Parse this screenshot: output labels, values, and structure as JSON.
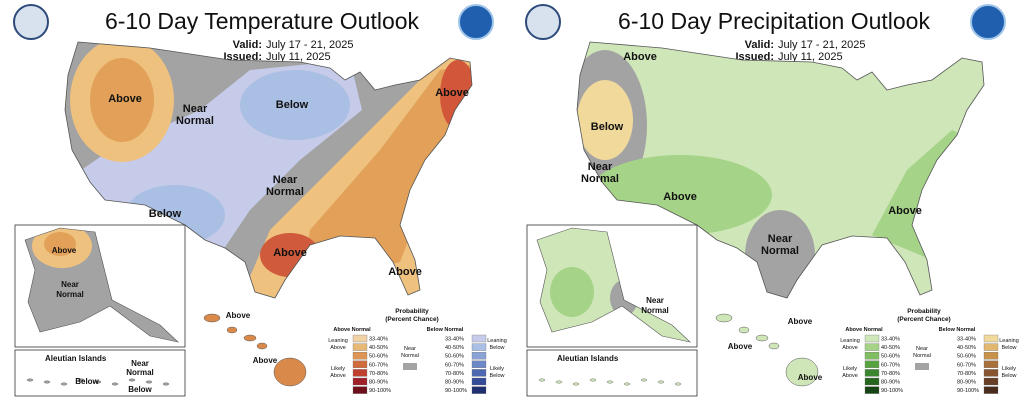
{
  "panels": [
    {
      "title": "6-10 Day Temperature Outlook",
      "valid_label": "Valid:",
      "valid": "July 17 - 21, 2025",
      "issued_label": "Issued:",
      "issued": "July 11, 2025",
      "map_labels": [
        [
          "Above"
        ],
        [
          "Near",
          "Normal"
        ],
        [
          "Below"
        ],
        [
          "Near",
          "Normal"
        ],
        [
          "Below"
        ],
        [
          "Above"
        ],
        [
          "Above"
        ],
        [
          "Above"
        ]
      ],
      "alaska_labels": [
        [
          "Above"
        ],
        [
          "Near",
          "Normal"
        ]
      ],
      "aleutian": {
        "title": "Aleutian Islands",
        "labels": [
          [
            "Near",
            "Normal"
          ],
          [
            "Below"
          ],
          [
            "Below"
          ]
        ]
      },
      "hawaii_labels": [
        "Above",
        "Above"
      ],
      "legend": {
        "title": [
          "Probability",
          "(Percent Chance)"
        ],
        "above_header": "Above Normal",
        "below_header": "Below Normal",
        "near": [
          "Near",
          "Normal"
        ],
        "leaning_above": [
          "Leaning",
          "Above"
        ],
        "likely_above": [
          "Likely",
          "Above"
        ],
        "leaning_below": [
          "Leaning",
          "Below"
        ],
        "likely_below": [
          "Likely",
          "Below"
        ],
        "above_ranges": [
          "33-40%",
          "40-50%",
          "50-60%",
          "60-70%",
          "70-80%",
          "80-90%",
          "90-100%"
        ],
        "below_ranges": [
          "33-40%",
          "40-50%",
          "50-60%",
          "60-70%",
          "70-80%",
          "80-90%",
          "90-100%"
        ]
      }
    },
    {
      "title": "6-10 Day Precipitation Outlook",
      "valid_label": "Valid:",
      "valid": "July 17 - 21, 2025",
      "issued_label": "Issued:",
      "issued": "July 11, 2025",
      "map_labels": [
        [
          "Above"
        ],
        [
          "Below"
        ],
        [
          "Near",
          "Normal"
        ],
        [
          "Above"
        ],
        [
          "Near",
          "Normal"
        ],
        [
          "Above"
        ]
      ],
      "alaska_labels": [
        [
          "Near",
          "Normal"
        ]
      ],
      "aleutian": {
        "title": "Aleutian Islands",
        "labels": []
      },
      "hawaii_labels": [
        "Above",
        "Above",
        "Above"
      ],
      "legend": {
        "title": [
          "Probability",
          "(Percent Chance)"
        ],
        "above_header": "Above Normal",
        "below_header": "Below Normal",
        "near": [
          "Near",
          "Normal"
        ],
        "leaning_above": [
          "Leaning",
          "Above"
        ],
        "likely_above": [
          "Likely",
          "Above"
        ],
        "leaning_below": [
          "Leaning",
          "Below"
        ],
        "likely_below": [
          "Likely",
          "Below"
        ],
        "above_ranges": [
          "33-40%",
          "40-50%",
          "50-60%",
          "60-70%",
          "70-80%",
          "80-90%",
          "90-100%"
        ],
        "below_ranges": [
          "33-40%",
          "40-50%",
          "50-60%",
          "60-70%",
          "70-80%",
          "80-90%",
          "90-100%"
        ]
      }
    }
  ]
}
